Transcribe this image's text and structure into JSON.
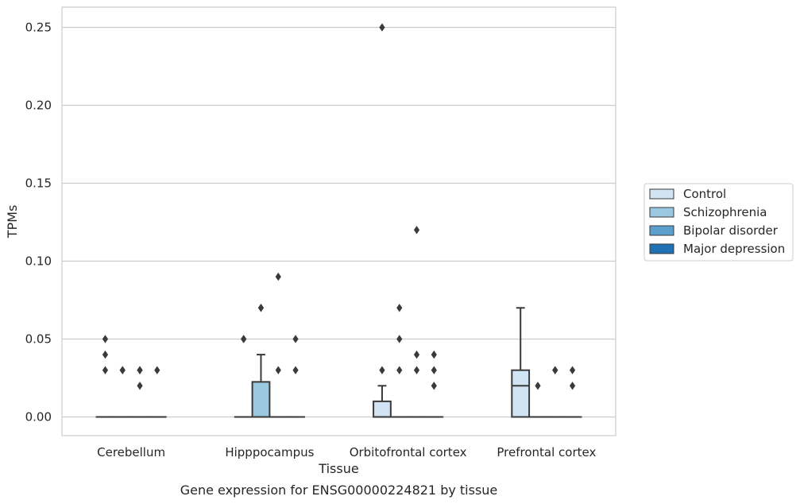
{
  "chart_data": {
    "type": "box",
    "xlabel": "Tissue",
    "ylabel": "TPMs",
    "caption": "Gene expression for ENSG00000224821 by tissue",
    "ylim": [
      -0.012,
      0.263
    ],
    "y_ticks": [
      0.0,
      0.05,
      0.1,
      0.15,
      0.2,
      0.25
    ],
    "y_tick_labels": [
      "0.00",
      "0.05",
      "0.10",
      "0.15",
      "0.20",
      "0.25"
    ],
    "grid": "horizontal",
    "legend_position": "right",
    "categories": [
      "Cerebellum",
      "Hipppocampus",
      "Orbitofrontal cortex",
      "Prefrontal cortex"
    ],
    "series": [
      {
        "name": "Control",
        "color": "#d2e3f3",
        "boxes": [
          {
            "q1": 0.0,
            "median": 0.0,
            "q3": 0.0,
            "whisker_low": 0.0,
            "whisker_high": 0.0,
            "outliers": [
              0.05,
              0.04,
              0.03
            ]
          },
          {
            "q1": 0.0,
            "median": 0.0,
            "q3": 0.0,
            "whisker_low": 0.0,
            "whisker_high": 0.0,
            "outliers": [
              0.05,
              0.05
            ]
          },
          {
            "q1": 0.0,
            "median": 0.0,
            "q3": 0.01,
            "whisker_low": 0.0,
            "whisker_high": 0.02,
            "outliers": [
              0.03,
              0.25
            ]
          },
          {
            "q1": 0.0,
            "median": 0.02,
            "q3": 0.03,
            "whisker_low": 0.0,
            "whisker_high": 0.07,
            "outliers": []
          }
        ]
      },
      {
        "name": "Schizophrenia",
        "color": "#9ac8e0",
        "boxes": [
          {
            "q1": 0.0,
            "median": 0.0,
            "q3": 0.0,
            "whisker_low": 0.0,
            "whisker_high": 0.0,
            "outliers": [
              0.03,
              0.03
            ]
          },
          {
            "q1": 0.0,
            "median": 0.0,
            "q3": 0.0225,
            "whisker_low": 0.0,
            "whisker_high": 0.04,
            "outliers": [
              0.07,
              0.07
            ]
          },
          {
            "q1": 0.0,
            "median": 0.0,
            "q3": 0.0,
            "whisker_low": 0.0,
            "whisker_high": 0.0,
            "outliers": [
              0.07,
              0.05,
              0.03
            ]
          },
          {
            "q1": 0.0,
            "median": 0.0,
            "q3": 0.0,
            "whisker_low": 0.0,
            "whisker_high": 0.0,
            "outliers": [
              0.02
            ]
          }
        ]
      },
      {
        "name": "Bipolar disorder",
        "color": "#5a9fce",
        "boxes": [
          {
            "q1": 0.0,
            "median": 0.0,
            "q3": 0.0,
            "whisker_low": 0.0,
            "whisker_high": 0.0,
            "outliers": [
              0.03,
              0.03,
              0.02
            ]
          },
          {
            "q1": 0.0,
            "median": 0.0,
            "q3": 0.0,
            "whisker_low": 0.0,
            "whisker_high": 0.0,
            "outliers": [
              0.09,
              0.03
            ]
          },
          {
            "q1": 0.0,
            "median": 0.0,
            "q3": 0.0,
            "whisker_low": 0.0,
            "whisker_high": 0.0,
            "outliers": [
              0.12,
              0.04,
              0.03
            ]
          },
          {
            "q1": 0.0,
            "median": 0.0,
            "q3": 0.0,
            "whisker_low": 0.0,
            "whisker_high": 0.0,
            "outliers": [
              0.03,
              0.03
            ]
          }
        ]
      },
      {
        "name": "Major depression",
        "color": "#2070b4",
        "boxes": [
          {
            "q1": 0.0,
            "median": 0.0,
            "q3": 0.0,
            "whisker_low": 0.0,
            "whisker_high": 0.0,
            "outliers": [
              0.03
            ]
          },
          {
            "q1": 0.0,
            "median": 0.0,
            "q3": 0.0,
            "whisker_low": 0.0,
            "whisker_high": 0.0,
            "outliers": [
              0.05,
              0.03
            ]
          },
          {
            "q1": 0.0,
            "median": 0.0,
            "q3": 0.0,
            "whisker_low": 0.0,
            "whisker_high": 0.0,
            "outliers": [
              0.04,
              0.03,
              0.02
            ]
          },
          {
            "q1": 0.0,
            "median": 0.0,
            "q3": 0.0,
            "whisker_low": 0.0,
            "whisker_high": 0.0,
            "outliers": [
              0.03,
              0.02
            ]
          }
        ]
      }
    ]
  }
}
